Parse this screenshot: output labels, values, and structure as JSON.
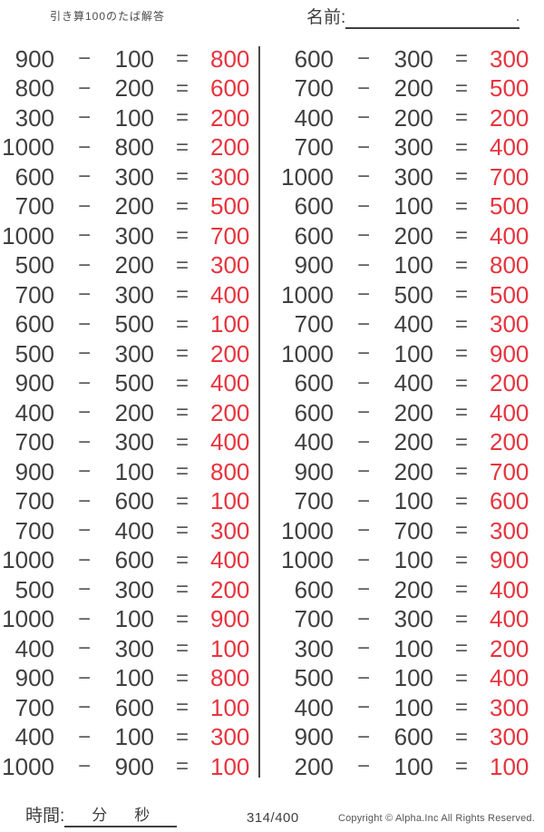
{
  "header": {
    "title": "引き算100のたば解答",
    "name_label": "名前:",
    "name_blank_trailing": "."
  },
  "operators": {
    "minus": "−",
    "equals": "="
  },
  "colors": {
    "ink": "#3f3f3f",
    "answer_red": "#e7343e"
  },
  "columns": [
    {
      "problems": [
        [
          900,
          100,
          800
        ],
        [
          800,
          200,
          600
        ],
        [
          300,
          100,
          200
        ],
        [
          1000,
          800,
          200
        ],
        [
          600,
          300,
          300
        ],
        [
          700,
          200,
          500
        ],
        [
          1000,
          300,
          700
        ],
        [
          500,
          200,
          300
        ],
        [
          700,
          300,
          400
        ],
        [
          600,
          500,
          100
        ],
        [
          500,
          300,
          200
        ],
        [
          900,
          500,
          400
        ],
        [
          400,
          200,
          200
        ],
        [
          700,
          300,
          400
        ],
        [
          900,
          100,
          800
        ],
        [
          700,
          600,
          100
        ],
        [
          700,
          400,
          300
        ],
        [
          1000,
          600,
          400
        ],
        [
          500,
          300,
          200
        ],
        [
          1000,
          100,
          900
        ],
        [
          400,
          300,
          100
        ],
        [
          900,
          100,
          800
        ],
        [
          700,
          600,
          100
        ],
        [
          400,
          100,
          300
        ],
        [
          1000,
          900,
          100
        ]
      ]
    },
    {
      "problems": [
        [
          600,
          300,
          300
        ],
        [
          700,
          200,
          500
        ],
        [
          400,
          200,
          200
        ],
        [
          700,
          300,
          400
        ],
        [
          1000,
          300,
          700
        ],
        [
          600,
          100,
          500
        ],
        [
          600,
          200,
          400
        ],
        [
          900,
          100,
          800
        ],
        [
          1000,
          500,
          500
        ],
        [
          700,
          400,
          300
        ],
        [
          1000,
          100,
          900
        ],
        [
          600,
          400,
          200
        ],
        [
          600,
          200,
          400
        ],
        [
          400,
          200,
          200
        ],
        [
          900,
          200,
          700
        ],
        [
          700,
          100,
          600
        ],
        [
          1000,
          700,
          300
        ],
        [
          1000,
          100,
          900
        ],
        [
          600,
          200,
          400
        ],
        [
          700,
          300,
          400
        ],
        [
          300,
          100,
          200
        ],
        [
          500,
          100,
          400
        ],
        [
          400,
          100,
          300
        ],
        [
          900,
          600,
          300
        ],
        [
          200,
          100,
          100
        ]
      ]
    }
  ],
  "footer": {
    "time_label": "時間:",
    "minutes_label": "分",
    "seconds_label": "秒",
    "page": "314/400",
    "copyright": "Copyright ©  Alpha.Inc All Rights Reserved."
  }
}
